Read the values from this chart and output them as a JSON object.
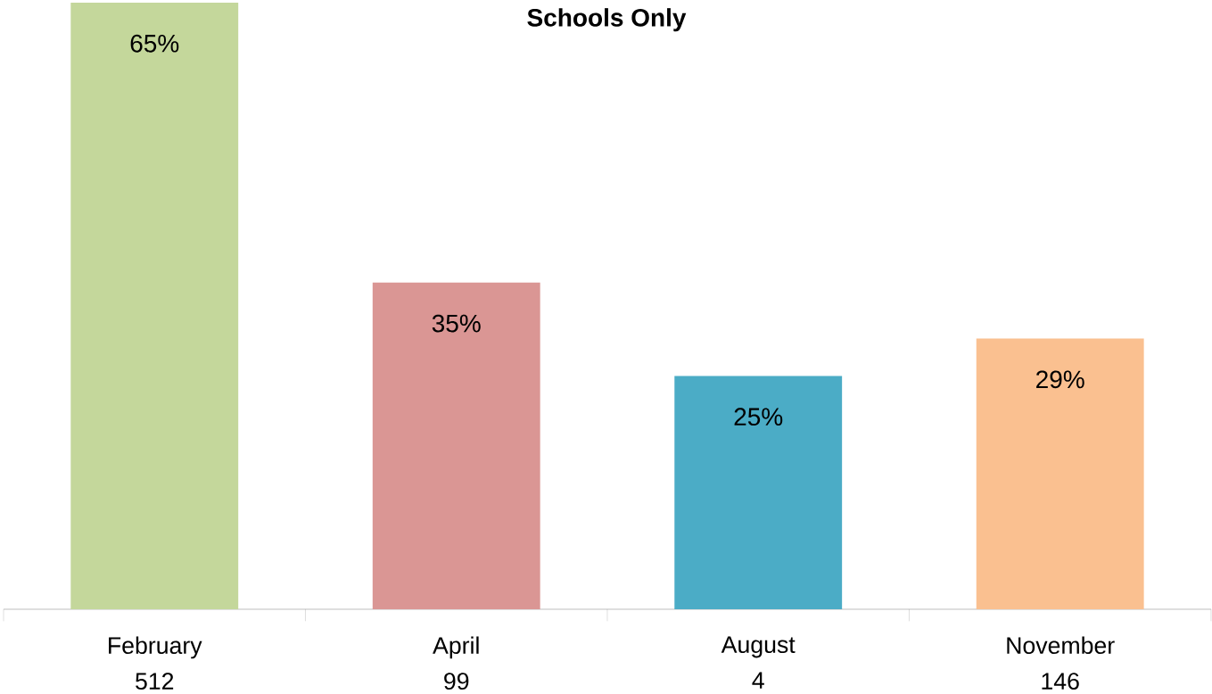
{
  "chart_data": {
    "type": "bar",
    "title": "Schools Only",
    "categories": [
      "February\n512",
      "April\n99",
      "August\n4",
      "November\n146"
    ],
    "values": [
      65,
      35,
      25,
      29
    ],
    "colors": [
      "#c4d79b",
      "#da9694",
      "#4bacc6",
      "#fac090"
    ],
    "value_labels": [
      "65%",
      "35%",
      "25%",
      "29%"
    ],
    "grid": false
  }
}
